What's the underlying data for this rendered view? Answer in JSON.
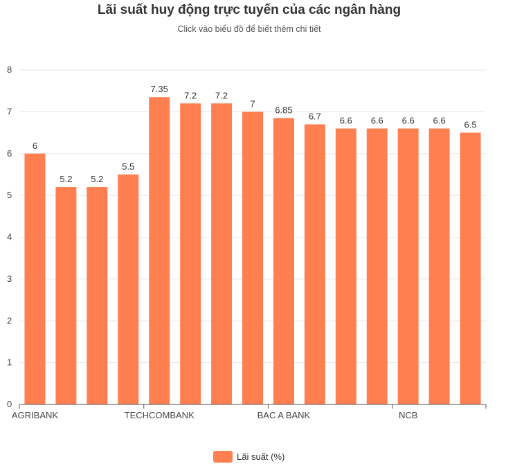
{
  "chart_data": {
    "type": "bar",
    "title": "Lãi suất huy động trực tuyến của các ngân hàng",
    "subtitle": "Click vào biểu đồ để biết thêm chi tiết",
    "categories": [
      "AGRIBANK",
      "",
      "",
      "",
      "TECHCOMBANK",
      "",
      "",
      "",
      "BAC A BANK",
      "",
      "",
      "",
      "NCB",
      "",
      ""
    ],
    "series": [
      {
        "name": "Lãi suất (%)",
        "values": [
          6,
          5.2,
          5.2,
          5.5,
          7.35,
          7.2,
          7.2,
          7,
          6.85,
          6.7,
          6.6,
          6.6,
          6.6,
          6.6,
          6.5
        ],
        "data_labels": [
          "6",
          "5.2",
          "5.2",
          "5.5",
          "7.35",
          "7.2",
          "7.2",
          "7",
          "6.85",
          "6.7",
          "6.6",
          "6.6",
          "6.6",
          "6.6",
          "6.5"
        ]
      }
    ],
    "ylim": [
      0,
      8
    ],
    "yticks": [
      "0",
      "1",
      "2",
      "3",
      "4",
      "5",
      "6",
      "7",
      "8"
    ],
    "grid": true,
    "legend_position": "bottom",
    "bar_color": "#FF7F50"
  }
}
